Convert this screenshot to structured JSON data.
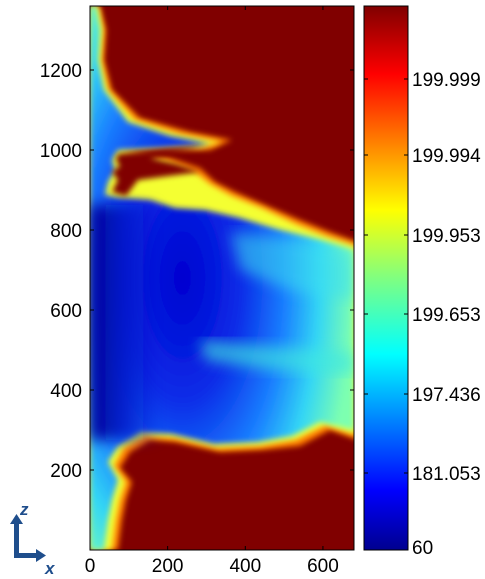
{
  "chart_data": {
    "type": "heatmap",
    "title": "",
    "xlabel": "",
    "ylabel": "",
    "xlim": [
      0,
      680
    ],
    "ylim": [
      0,
      1360
    ],
    "x_ticks": [
      "0",
      "200",
      "400",
      "600"
    ],
    "y_ticks": [
      "200",
      "400",
      "600",
      "800",
      "1000",
      "1200"
    ],
    "colorbar": {
      "colormap": "jet",
      "tick_labels": [
        "60",
        "181.053",
        "197.436",
        "199.653",
        "199.953",
        "199.994",
        "199.999"
      ],
      "min_label": "60",
      "max_value_color": "#800000",
      "min_value_color": "#00008f"
    },
    "field_boundary": {
      "description_values_in_data_units": "x extent of the high-value (dark red) region edge at given y",
      "bottom_region_top_y": 280,
      "top_region_bottom_y": 870,
      "finger_y": 1020
    },
    "axes_glyph": {
      "vertical_label": "z",
      "horizontal_label": "x"
    }
  }
}
